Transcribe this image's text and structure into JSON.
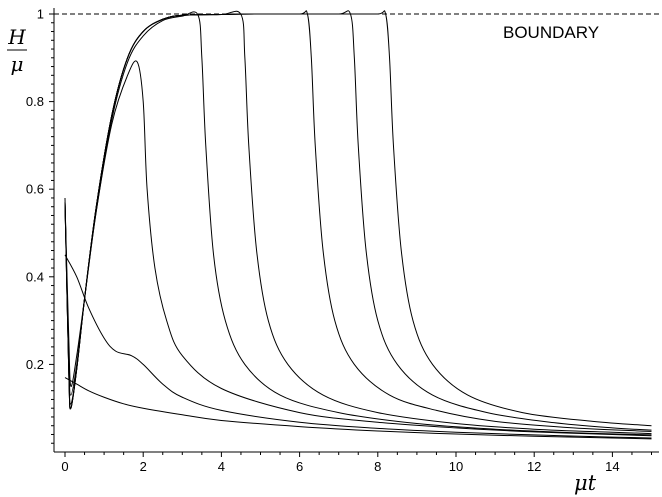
{
  "chart_data": {
    "type": "line",
    "ylabel_num": "H",
    "ylabel_den": "μ",
    "xlabel": "μt",
    "annotation": "BOUNDARY",
    "xlim": [
      0,
      15
    ],
    "ylim": [
      0,
      1
    ],
    "xticks": [
      0,
      2,
      4,
      6,
      8,
      10,
      12,
      14
    ],
    "yticks": [
      0.2,
      0.4,
      0.6,
      0.8,
      1
    ],
    "ytick_labels": [
      "0.2",
      "0.4",
      "0.6",
      "0.8",
      "1"
    ],
    "xtick_labels": [
      "0",
      "2",
      "4",
      "6",
      "8",
      "10",
      "12",
      "14"
    ],
    "grid": false,
    "boundary_line": {
      "y": 1,
      "style": "dashed"
    },
    "series": [
      {
        "x": [
          0,
          0.3,
          0.6,
          1,
          1.5,
          2,
          3,
          4,
          6,
          8,
          10,
          12,
          14,
          15
        ],
        "y": [
          0.17,
          0.155,
          0.14,
          0.125,
          0.11,
          0.1,
          0.085,
          0.072,
          0.058,
          0.048,
          0.041,
          0.036,
          0.032,
          0.03
        ]
      },
      {
        "x": [
          0,
          0.3,
          0.6,
          1,
          1.3,
          1.7,
          2,
          2.5,
          3,
          4,
          6,
          8,
          10,
          12,
          14,
          15
        ],
        "y": [
          0.45,
          0.4,
          0.33,
          0.26,
          0.23,
          0.22,
          0.2,
          0.155,
          0.125,
          0.095,
          0.068,
          0.054,
          0.045,
          0.039,
          0.034,
          0.032
        ]
      },
      {
        "x": [
          0,
          0.1,
          0.15,
          0.3,
          0.5,
          0.8,
          1.2,
          1.6,
          1.85,
          2,
          2.1,
          2.3,
          2.6,
          3,
          4,
          6,
          8,
          10,
          12,
          14,
          15
        ],
        "y": [
          0.57,
          0.25,
          0.15,
          0.22,
          0.35,
          0.55,
          0.75,
          0.86,
          0.89,
          0.8,
          0.6,
          0.42,
          0.3,
          0.22,
          0.145,
          0.09,
          0.068,
          0.055,
          0.046,
          0.04,
          0.037
        ]
      },
      {
        "x": [
          0,
          0.1,
          0.15,
          0.3,
          0.5,
          0.8,
          1.2,
          1.6,
          2,
          2.5,
          3,
          3.4,
          3.5,
          3.6,
          3.8,
          4.1,
          4.6,
          5.5,
          7,
          9,
          11,
          13,
          15
        ],
        "y": [
          0.57,
          0.2,
          0.13,
          0.2,
          0.35,
          0.55,
          0.76,
          0.89,
          0.95,
          0.985,
          0.995,
          0.998,
          0.9,
          0.7,
          0.45,
          0.3,
          0.2,
          0.13,
          0.09,
          0.065,
          0.052,
          0.044,
          0.039
        ]
      },
      {
        "x": [
          0,
          0.1,
          0.15,
          0.3,
          0.5,
          0.8,
          1.2,
          1.6,
          2,
          2.5,
          3,
          4,
          4.5,
          4.6,
          4.7,
          4.9,
          5.2,
          5.7,
          6.6,
          8,
          10,
          12,
          14,
          15
        ],
        "y": [
          0.58,
          0.18,
          0.11,
          0.19,
          0.35,
          0.56,
          0.77,
          0.9,
          0.96,
          0.988,
          0.997,
          0.999,
          0.999,
          0.9,
          0.7,
          0.46,
          0.3,
          0.2,
          0.13,
          0.09,
          0.065,
          0.052,
          0.045,
          0.042
        ]
      },
      {
        "x": [
          0,
          0.1,
          0.15,
          0.3,
          0.5,
          0.8,
          1.2,
          1.6,
          2,
          2.5,
          3,
          4,
          5,
          6,
          6.2,
          6.3,
          6.4,
          6.6,
          6.9,
          7.4,
          8.3,
          9.5,
          11,
          13,
          15
        ],
        "y": [
          0.57,
          0.17,
          0.1,
          0.19,
          0.35,
          0.56,
          0.77,
          0.9,
          0.96,
          0.988,
          0.997,
          0.999,
          1,
          1,
          1,
          0.9,
          0.7,
          0.46,
          0.3,
          0.2,
          0.13,
          0.095,
          0.07,
          0.055,
          0.047
        ]
      },
      {
        "x": [
          0,
          0.1,
          0.15,
          0.3,
          0.5,
          0.8,
          1.2,
          1.6,
          2,
          2.5,
          3,
          4,
          5,
          6,
          7,
          7.3,
          7.4,
          7.5,
          7.7,
          8,
          8.5,
          9.4,
          10.8,
          12.5,
          14,
          15
        ],
        "y": [
          0.57,
          0.17,
          0.1,
          0.19,
          0.35,
          0.56,
          0.77,
          0.9,
          0.96,
          0.988,
          0.997,
          0.999,
          1,
          1,
          1,
          1,
          0.9,
          0.7,
          0.46,
          0.3,
          0.2,
          0.13,
          0.09,
          0.067,
          0.055,
          0.05
        ]
      },
      {
        "x": [
          0,
          0.1,
          0.15,
          0.3,
          0.5,
          0.8,
          1.2,
          1.6,
          2,
          2.5,
          3,
          4,
          5,
          6,
          7,
          8,
          8.2,
          8.3,
          8.4,
          8.6,
          8.9,
          9.4,
          10.3,
          11.7,
          13.5,
          15
        ],
        "y": [
          0.57,
          0.17,
          0.1,
          0.19,
          0.35,
          0.56,
          0.77,
          0.9,
          0.96,
          0.988,
          0.997,
          0.999,
          1,
          1,
          1,
          1,
          1,
          0.9,
          0.7,
          0.46,
          0.3,
          0.2,
          0.13,
          0.09,
          0.07,
          0.06
        ]
      }
    ]
  }
}
